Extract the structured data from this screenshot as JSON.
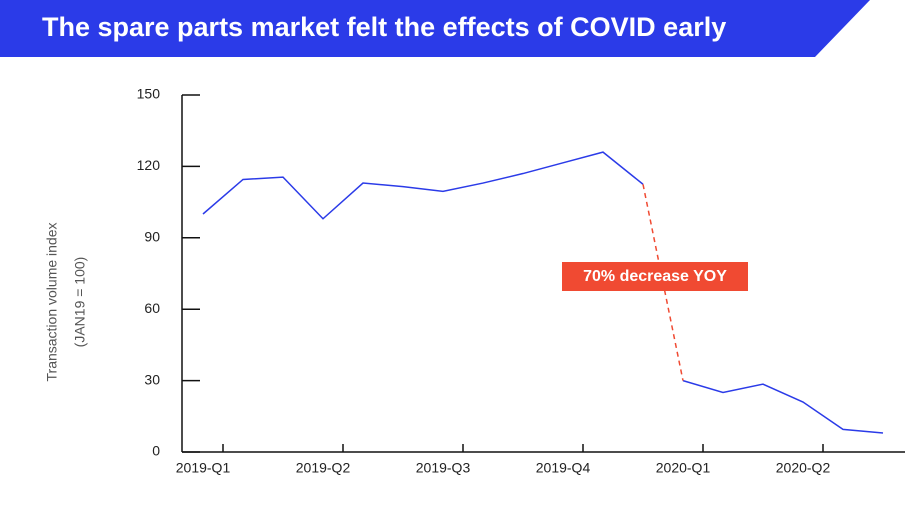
{
  "chart_data": {
    "type": "line",
    "title": "The spare parts market felt the effects of COVID early",
    "y_label": [
      "Transaction volume index",
      "(JAN19 = 100)"
    ],
    "x": [
      0,
      1,
      2,
      3,
      4,
      5,
      6,
      7,
      8,
      9,
      10,
      11,
      12,
      13,
      14,
      15,
      16,
      17
    ],
    "series": [
      {
        "color": "#2b3be8",
        "values": [
          100,
          114.5,
          115.5,
          98,
          113,
          111.5,
          109.5,
          113,
          117,
          121.5,
          126,
          112.5,
          null,
          null,
          null,
          null,
          null,
          null
        ]
      },
      {
        "color": "#2b3be8",
        "values": [
          null,
          null,
          null,
          null,
          null,
          null,
          null,
          null,
          null,
          null,
          null,
          null,
          30,
          25,
          28.5,
          21,
          9.5,
          8
        ]
      }
    ],
    "connector_color": "#f04a32",
    "annotation": {
      "text": "70% decrease YOY",
      "color": "#f04a32"
    },
    "xlim": [
      -0.525,
      17.55
    ],
    "xticks": [
      {
        "value": 0,
        "label": "2019-Q1"
      },
      {
        "value": 3,
        "label": "2019-Q2"
      },
      {
        "value": 6,
        "label": "2019-Q3"
      },
      {
        "value": 9,
        "label": "2019-Q4"
      },
      {
        "value": 12,
        "label": "2020-Q1"
      },
      {
        "value": 15,
        "label": "2020-Q2"
      }
    ],
    "ylim": [
      0,
      150
    ],
    "yticks": [
      0,
      30,
      60,
      90,
      120,
      150
    ]
  }
}
